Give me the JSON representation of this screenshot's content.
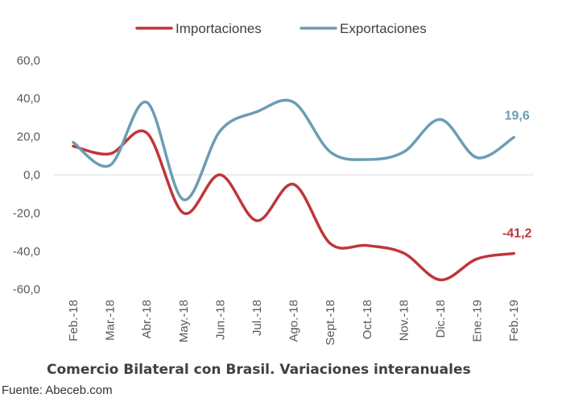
{
  "chart_data": {
    "type": "line",
    "categories": [
      "Feb.-18",
      "Mar.-18",
      "Abr.-18",
      "May.-18",
      "Jun.-18",
      "Jul.-18",
      "Ago.-18",
      "Sept.-18",
      "Oct.-18",
      "Nov.-18",
      "Dic.-18",
      "Ene.-19",
      "Feb.-19"
    ],
    "series": [
      {
        "name": "Importaciones",
        "color": "#c0353a",
        "values": [
          15,
          11,
          22,
          -20,
          0,
          -24,
          -5,
          -36,
          -37,
          -41,
          -55,
          -44,
          -41.2
        ],
        "end_label": "-41,2"
      },
      {
        "name": "Exportaciones",
        "color": "#6b9db3",
        "values": [
          17,
          5,
          38,
          -13,
          23,
          33,
          38,
          12,
          8,
          12,
          29,
          9,
          19.6
        ],
        "end_label": "19,6"
      }
    ],
    "y_ticks": [
      "60,0",
      "40,0",
      "20,0",
      "0,0",
      "-20,0",
      "-40,0",
      "-60,0"
    ],
    "y_tick_values": [
      60,
      40,
      20,
      0,
      -20,
      -40,
      -60
    ],
    "ylim": [
      -60,
      60
    ],
    "legend_position": "top",
    "grid": false,
    "zero_line": true
  },
  "caption": "Comercio Bilateral con Brasil. Variaciones interanuales",
  "source": "Fuente: Abeceb.com"
}
